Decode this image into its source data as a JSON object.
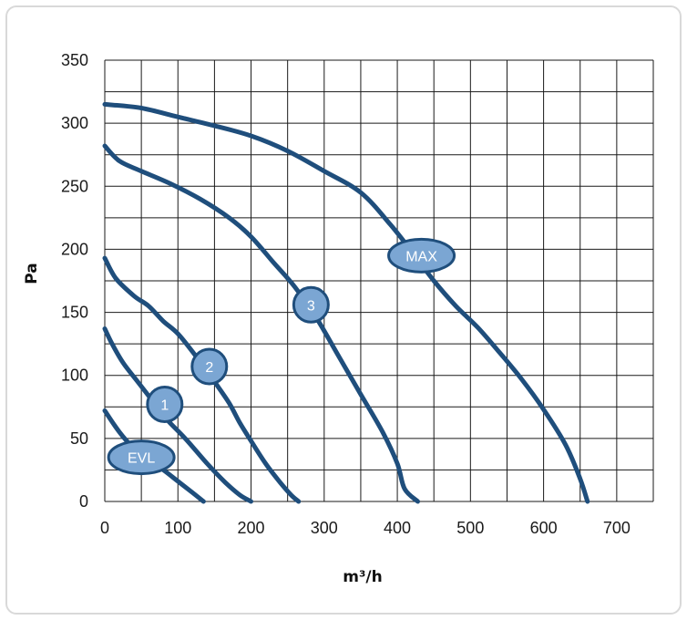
{
  "chart_data": {
    "type": "line",
    "xlabel": "m³/h",
    "ylabel": "Pa",
    "xlim": [
      0,
      750
    ],
    "ylim": [
      0,
      350
    ],
    "x_ticks": [
      0,
      100,
      200,
      300,
      400,
      500,
      600,
      700
    ],
    "y_ticks": [
      0,
      50,
      100,
      150,
      200,
      250,
      300,
      350
    ],
    "grid": true,
    "colors": {
      "curve": "#1f4e7c",
      "badge_fill": "#7ba6d3",
      "badge_stroke": "#1f4e7c",
      "grid": "#1a1a1a"
    },
    "series": [
      {
        "name": "EVL",
        "label_at": [
          50,
          35
        ],
        "points": [
          [
            0,
            72
          ],
          [
            20,
            55
          ],
          [
            40,
            42
          ],
          [
            60,
            33
          ],
          [
            80,
            25
          ],
          [
            100,
            16
          ],
          [
            120,
            7
          ],
          [
            135,
            0
          ]
        ]
      },
      {
        "name": "1",
        "label_at": [
          82,
          77
        ],
        "points": [
          [
            0,
            137
          ],
          [
            10,
            125
          ],
          [
            25,
            110
          ],
          [
            45,
            95
          ],
          [
            65,
            80
          ],
          [
            85,
            65
          ],
          [
            110,
            50
          ],
          [
            140,
            30
          ],
          [
            165,
            15
          ],
          [
            185,
            5
          ],
          [
            200,
            0
          ]
        ]
      },
      {
        "name": "2",
        "label_at": [
          143,
          107
        ],
        "points": [
          [
            0,
            193
          ],
          [
            15,
            177
          ],
          [
            40,
            163
          ],
          [
            60,
            155
          ],
          [
            80,
            143
          ],
          [
            100,
            133
          ],
          [
            125,
            115
          ],
          [
            150,
            95
          ],
          [
            170,
            78
          ],
          [
            185,
            62
          ],
          [
            200,
            48
          ],
          [
            220,
            30
          ],
          [
            240,
            15
          ],
          [
            255,
            5
          ],
          [
            265,
            0
          ]
        ]
      },
      {
        "name": "3",
        "label_at": [
          282,
          156
        ],
        "points": [
          [
            0,
            282
          ],
          [
            20,
            270
          ],
          [
            50,
            262
          ],
          [
            90,
            252
          ],
          [
            130,
            240
          ],
          [
            170,
            225
          ],
          [
            200,
            210
          ],
          [
            230,
            190
          ],
          [
            260,
            170
          ],
          [
            290,
            145
          ],
          [
            320,
            115
          ],
          [
            350,
            85
          ],
          [
            380,
            55
          ],
          [
            400,
            30
          ],
          [
            410,
            10
          ],
          [
            428,
            0
          ]
        ]
      },
      {
        "name": "MAX",
        "label_at": [
          433,
          195
        ],
        "points": [
          [
            0,
            315
          ],
          [
            50,
            312
          ],
          [
            100,
            305
          ],
          [
            150,
            298
          ],
          [
            200,
            290
          ],
          [
            250,
            278
          ],
          [
            300,
            262
          ],
          [
            350,
            245
          ],
          [
            390,
            220
          ],
          [
            420,
            198
          ],
          [
            450,
            175
          ],
          [
            480,
            155
          ],
          [
            510,
            138
          ],
          [
            540,
            118
          ],
          [
            570,
            97
          ],
          [
            600,
            73
          ],
          [
            630,
            45
          ],
          [
            650,
            18
          ],
          [
            660,
            0
          ]
        ]
      }
    ]
  }
}
